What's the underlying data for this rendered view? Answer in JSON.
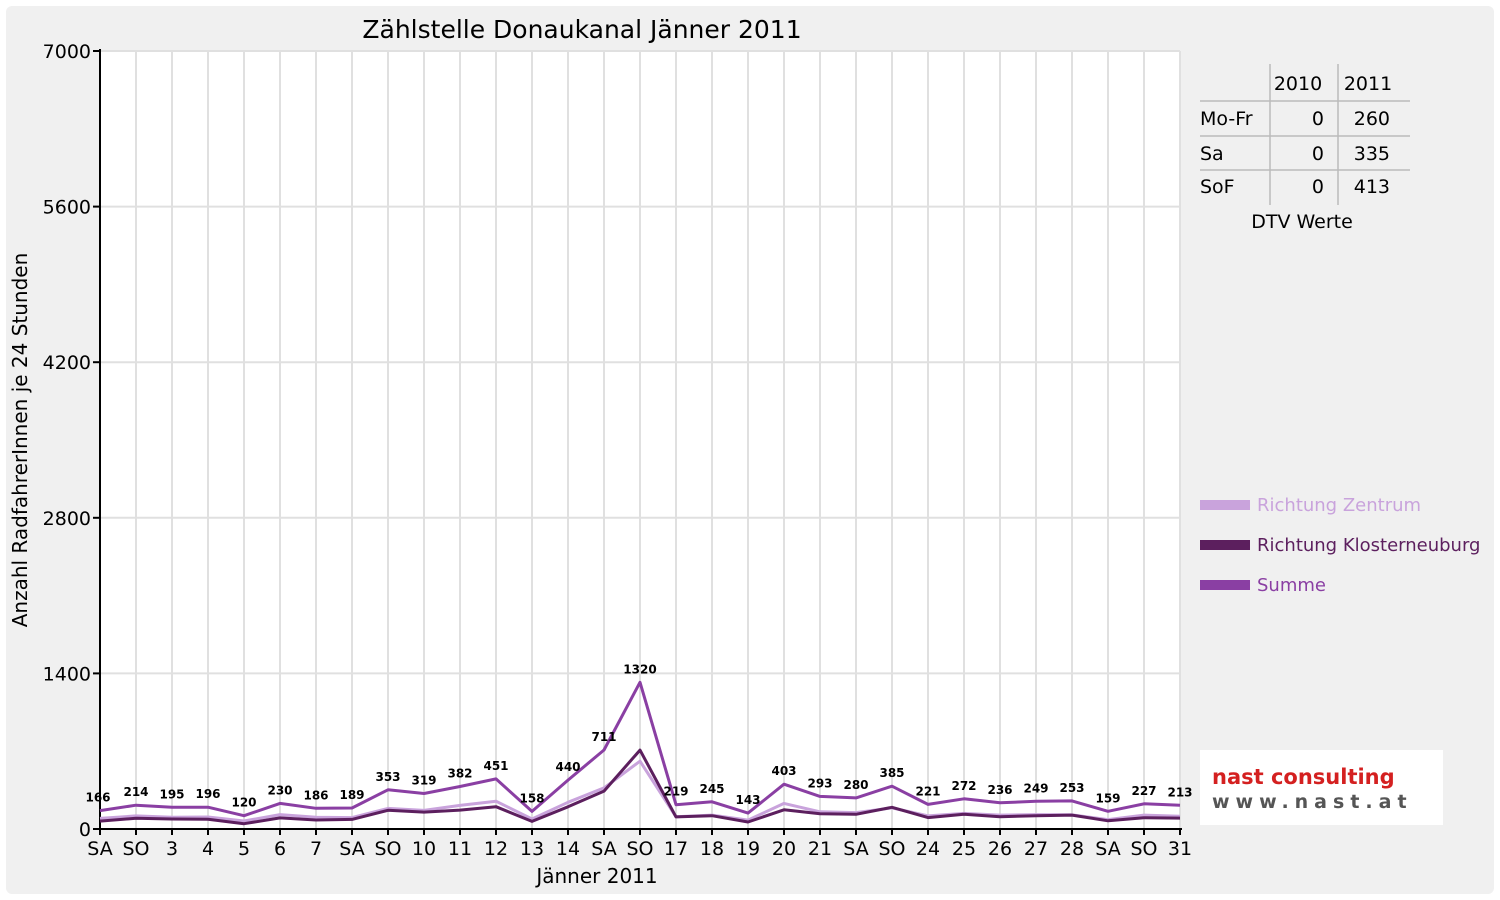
{
  "colors": {
    "zentrum": "#c9a3dc",
    "klosterneuburg": "#5c1f5e",
    "summe": "#8a3fa3",
    "weekend_label": "#e60000",
    "grid": "#e0e0e0",
    "logo_red": "#d42020",
    "logo_grey": "#555555"
  },
  "chart_data": {
    "type": "line",
    "title": "Zählstelle Donaukanal Jänner 2011",
    "xlabel": "Jänner 2011",
    "ylabel": "Anzahl RadfahrerInnen je 24 Stunden",
    "ylim": [
      0,
      7000
    ],
    "yticks": [
      "0",
      "1400",
      "2800",
      "4200",
      "5600",
      "7000"
    ],
    "grid": true,
    "legend_position": "right",
    "categories": [
      "SA",
      "SO",
      "3",
      "4",
      "5",
      "6",
      "7",
      "SA",
      "SO",
      "10",
      "11",
      "12",
      "13",
      "14",
      "SA",
      "SO",
      "17",
      "18",
      "19",
      "20",
      "21",
      "SA",
      "SO",
      "24",
      "25",
      "26",
      "27",
      "28",
      "SA",
      "SO",
      "31"
    ],
    "highlight": [
      false,
      true,
      false,
      false,
      false,
      true,
      false,
      false,
      true,
      false,
      false,
      false,
      false,
      false,
      false,
      true,
      false,
      false,
      false,
      false,
      false,
      false,
      true,
      false,
      false,
      false,
      false,
      false,
      false,
      true,
      false
    ],
    "series": [
      {
        "name": "Richtung Zentrum",
        "values": [
          95,
          118,
          105,
          108,
          72,
          130,
          105,
          103,
          185,
          167,
          212,
          250,
          90,
          240,
          370,
          610,
          110,
          125,
          80,
          230,
          155,
          148,
          190,
          118,
          140,
          125,
          130,
          128,
          85,
          125,
          115
        ]
      },
      {
        "name": "Richtung Klosterneuburg",
        "values": [
          71,
          96,
          90,
          88,
          48,
          100,
          81,
          86,
          168,
          152,
          170,
          201,
          68,
          200,
          341,
          710,
          109,
          120,
          63,
          173,
          138,
          132,
          195,
          103,
          132,
          111,
          119,
          125,
          74,
          102,
          98
        ]
      },
      {
        "name": "Summe",
        "values": [
          166,
          214,
          195,
          196,
          120,
          230,
          186,
          189,
          353,
          319,
          382,
          451,
          158,
          440,
          711,
          1320,
          219,
          245,
          143,
          403,
          293,
          280,
          385,
          221,
          272,
          236,
          249,
          253,
          159,
          227,
          213
        ]
      }
    ],
    "data_labels": [
      "166",
      "214",
      "195",
      "196",
      "120",
      "230",
      "186",
      "189",
      "353",
      "319",
      "382",
      "451",
      "158",
      "440",
      "711",
      "1320",
      "219",
      "245",
      "143",
      "403",
      "293",
      "280",
      "385",
      "221",
      "272",
      "236",
      "249",
      "253",
      "159",
      "227",
      "213"
    ]
  },
  "dtv_table": {
    "headers": [
      "",
      "2010",
      "2011"
    ],
    "rows": [
      {
        "label": "Mo-Fr",
        "v2010": "0",
        "v2011": "260"
      },
      {
        "label": "Sa",
        "v2010": "0",
        "v2011": "335"
      },
      {
        "label": "SoF",
        "v2010": "0",
        "v2011": "413"
      }
    ],
    "caption": "DTV Werte"
  },
  "logo": {
    "line1": "nast consulting",
    "line2": "www.nast.at"
  }
}
